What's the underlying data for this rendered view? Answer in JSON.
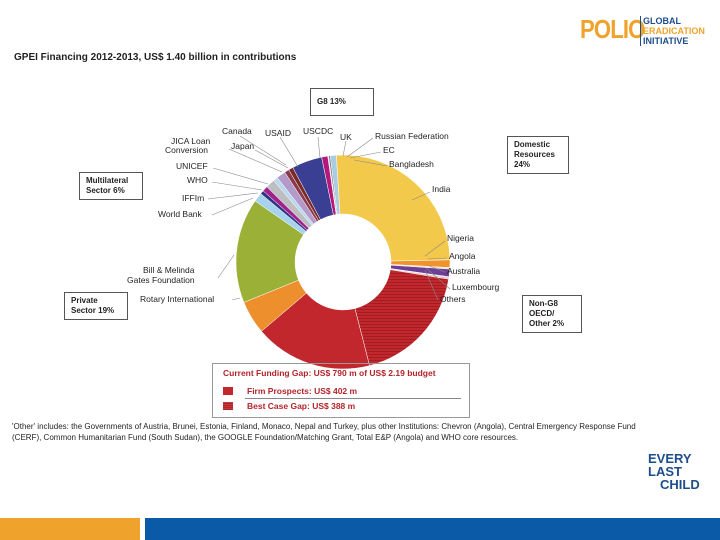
{
  "header": {
    "logo_polio": "POLIO",
    "logo_lines": [
      "GLOBAL",
      "ERADICATION",
      "INITIATIVE"
    ]
  },
  "chart_data": {
    "type": "pie",
    "title": "GPEI Financing 2012-2013, US$ 1.40 billion in contributions",
    "units": "US$ m (estimated)",
    "slices": [
      {
        "name": "USCDC",
        "value": 100,
        "color": "#3a3f93"
      },
      {
        "name": "UK",
        "value": 20,
        "color": "#b5187a"
      },
      {
        "name": "Russian Federation",
        "value": 3,
        "color": "#d9d9d9"
      },
      {
        "name": "EC",
        "value": 5,
        "color": "#6d6e71"
      },
      {
        "name": "Bangladesh",
        "value": 20,
        "color": "#a9cce3"
      },
      {
        "name": "India",
        "value": 560,
        "color": "#f3c94b"
      },
      {
        "name": "Nigeria",
        "value": 25,
        "color": "#f0932b"
      },
      {
        "name": "Angola",
        "value": 5,
        "color": "#f6d7b0"
      },
      {
        "name": "Australia",
        "value": 25,
        "color": "#6b3f96"
      },
      {
        "name": "Luxembourg",
        "value": 3,
        "color": "#c9b4d8"
      },
      {
        "name": "Others",
        "value": 5,
        "color": "#e8a7a0"
      },
      {
        "name": "Firm Prospects",
        "value": 402,
        "color": "#c1272d",
        "hatch": true
      },
      {
        "name": "Best Case Gap",
        "value": 388,
        "color": "#c1272d"
      },
      {
        "name": "Rotary International",
        "value": 110,
        "color": "#ee8f2e"
      },
      {
        "name": "Bill & Melinda Gates Foundation",
        "value": 345,
        "color": "#9bb037"
      },
      {
        "name": "World Bank",
        "value": 30,
        "color": "#a8d3ee"
      },
      {
        "name": "IFFIm",
        "value": 12,
        "color": "#2e3581"
      },
      {
        "name": "WHO",
        "value": 18,
        "color": "#a3218e"
      },
      {
        "name": "UNICEF",
        "value": 30,
        "color": "#bcbec0"
      },
      {
        "name": "JICA Loan Conversion",
        "value": 15,
        "color": "#b9d8ef"
      },
      {
        "name": "Japan",
        "value": 30,
        "color": "#b39ac8"
      },
      {
        "name": "Canada",
        "value": 15,
        "color": "#8a3a4a"
      },
      {
        "name": "USAID",
        "value": 15,
        "color": "#7a2a2a"
      }
    ],
    "labels": {
      "canada": "Canada",
      "usaid": "USAID",
      "uscdc": "USCDC",
      "uk": "UK",
      "russia": "Russian Federation",
      "ec": "EC",
      "bangladesh": "Bangladesh",
      "india": "India",
      "jica1": "JICA Loan",
      "jica2": "Conversion",
      "japan": "Japan",
      "unicef": "UNICEF",
      "who": "WHO",
      "iffim": "IFFIm",
      "worldbank": "World Bank",
      "nigeria": "Nigeria",
      "angola": "Angola",
      "australia": "Australia",
      "luxembourg": "Luxembourg",
      "others": "Others",
      "gates1": "Bill & Melinda",
      "gates2": "Gates Foundation",
      "rotary": "Rotary International"
    },
    "groups": {
      "g8": "G8 13%",
      "domestic": [
        "Domestic",
        "Resources",
        "24%"
      ],
      "multilateral": [
        "Multilateral",
        "Sector 6%"
      ],
      "private": [
        "Private",
        "Sector 19%"
      ],
      "nong8": [
        "Non-G8",
        "OECD/",
        "Other 2%"
      ]
    },
    "gap_legend": {
      "heading": "Current Funding Gap: US$ 790 m of US$ 2.19 budget",
      "firm": "Firm Prospects: US$ 402 m",
      "bestcase": "Best Case Gap: US$ 388 m"
    }
  },
  "footnote": "'Other' includes: the Governments of Austria, Brunei, Estonia, Finland, Monaco, Nepal and Turkey, plus other Institutions: Chevron (Angola), Central Emergency Response Fund (CERF), Common Humanitarian Fund (South Sudan), the GOOGLE Foundation/Matching Grant, Total E&P (Angola) and WHO core resources.",
  "footer_logo": [
    "EVERY",
    "LAST",
    "CHILD"
  ]
}
